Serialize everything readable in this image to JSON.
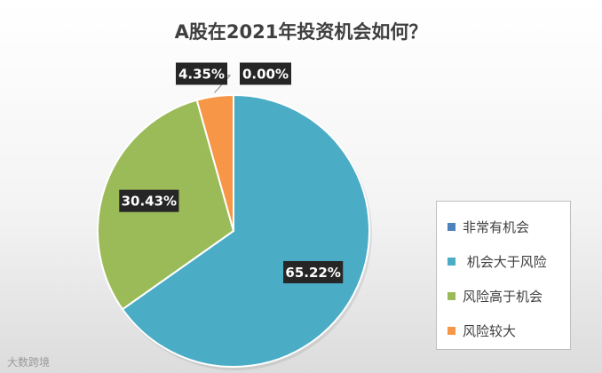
{
  "chart_data": {
    "type": "pie",
    "title": "A股在2021年投资机会如何？",
    "categories": [
      "非常有机会",
      " 机会大于风险",
      "风险高于机会",
      "风险较大"
    ],
    "values": [
      0.0,
      65.22,
      30.43,
      4.35
    ],
    "value_labels": [
      "0.00%",
      "65.22%",
      "30.43%",
      "4.35%"
    ],
    "colors": [
      "#4f81bd",
      "#4bacc6",
      "#9bbb59",
      "#f79646"
    ],
    "legend_position": "right"
  },
  "watermark": "大数跨境"
}
